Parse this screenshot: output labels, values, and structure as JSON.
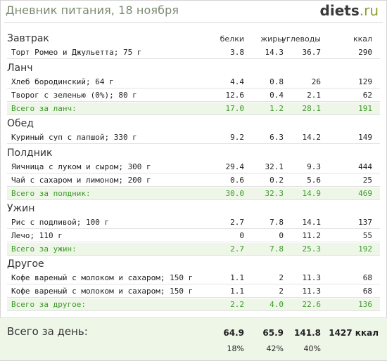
{
  "header": {
    "title": "Дневник питания, 18 ноября",
    "logo_main": "diets",
    "logo_tld": ".ru"
  },
  "columns": [
    "белки",
    "жиры",
    "углеводы",
    "ккал"
  ],
  "meals": [
    {
      "name": "Завтрак",
      "rows": [
        {
          "item": "Торт Ромео и Джульетта; 75 г",
          "protein": "3.8",
          "fat": "14.3",
          "carbs": "36.7",
          "kcal": "290"
        }
      ],
      "total": null
    },
    {
      "name": "Ланч",
      "rows": [
        {
          "item": "Хлеб бородинский; 64 г",
          "protein": "4.4",
          "fat": "0.8",
          "carbs": "26",
          "kcal": "129"
        },
        {
          "item": "Творог с зеленью (0%); 80 г",
          "protein": "12.6",
          "fat": "0.4",
          "carbs": "2.1",
          "kcal": "62"
        }
      ],
      "total": {
        "item": "Всего за ланч:",
        "protein": "17.0",
        "fat": "1.2",
        "carbs": "28.1",
        "kcal": "191"
      }
    },
    {
      "name": "Обед",
      "rows": [
        {
          "item": "Куриный суп с лапшой; 330 г",
          "protein": "9.2",
          "fat": "6.3",
          "carbs": "14.2",
          "kcal": "149"
        }
      ],
      "total": null
    },
    {
      "name": "Полдник",
      "rows": [
        {
          "item": "Яичница с луком и сыром; 300 г",
          "protein": "29.4",
          "fat": "32.1",
          "carbs": "9.3",
          "kcal": "444"
        },
        {
          "item": "Чай с сахаром и лимоном; 200 г",
          "protein": "0.6",
          "fat": "0.2",
          "carbs": "5.6",
          "kcal": "25"
        }
      ],
      "total": {
        "item": "Всего за полдник:",
        "protein": "30.0",
        "fat": "32.3",
        "carbs": "14.9",
        "kcal": "469"
      }
    },
    {
      "name": "Ужин",
      "rows": [
        {
          "item": "Рис с подливой; 100 г",
          "protein": "2.7",
          "fat": "7.8",
          "carbs": "14.1",
          "kcal": "137"
        },
        {
          "item": "Лечо; 110 г",
          "protein": "0",
          "fat": "0",
          "carbs": "11.2",
          "kcal": "55"
        }
      ],
      "total": {
        "item": "Всего за ужин:",
        "protein": "2.7",
        "fat": "7.8",
        "carbs": "25.3",
        "kcal": "192"
      }
    },
    {
      "name": "Другое",
      "rows": [
        {
          "item": "Кофе вареный с молоком и сахаром; 150 г",
          "protein": "1.1",
          "fat": "2",
          "carbs": "11.3",
          "kcal": "68"
        },
        {
          "item": "Кофе вареный с молоком и сахаром; 150 г",
          "protein": "1.1",
          "fat": "2",
          "carbs": "11.3",
          "kcal": "68"
        }
      ],
      "total": {
        "item": "Всего за другое:",
        "protein": "2.2",
        "fat": "4.0",
        "carbs": "22.6",
        "kcal": "136"
      }
    }
  ],
  "day_total": {
    "label": "Всего за день:",
    "protein": "64.9",
    "fat": "65.9",
    "carbs": "141.8",
    "kcal": "1427 ккал",
    "protein_pct": "18%",
    "fat_pct": "42%",
    "carbs_pct": "40%"
  },
  "colors": {
    "title": "#7a8a70",
    "total_text": "#3e9a2a",
    "total_bg": "#eef6e8",
    "logo_tld": "#8aa030"
  }
}
